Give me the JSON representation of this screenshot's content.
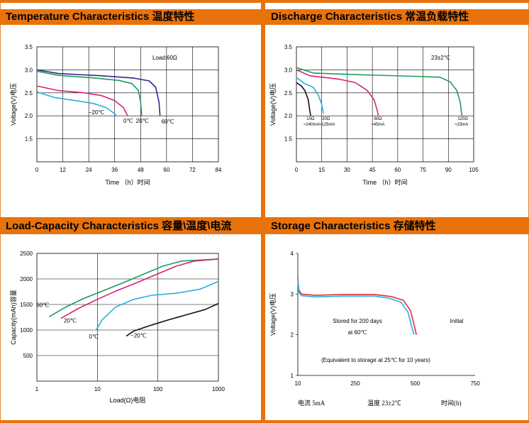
{
  "panels": {
    "temp": {
      "title": "Temperature Characteristics 温度特性"
    },
    "discharge": {
      "title": "Discharge Characteristics 常温负载特性"
    },
    "load": {
      "title": "Load-Capacity Characteristics 容量\\温度\\电流"
    },
    "storage": {
      "title": "Storage Characteristics 存储特性"
    }
  },
  "chart_data": [
    {
      "type": "line",
      "title": "Temperature Characteristics 温度特性",
      "xlabel": "Time （h）时间",
      "ylabel": "Voltage(V)电压",
      "xlim": [
        0,
        84
      ],
      "ylim": [
        1.0,
        3.5
      ],
      "xticks": [
        "0",
        "12",
        "24",
        "36",
        "48",
        "60",
        "72",
        "84"
      ],
      "yticks": [
        "1.5",
        "2.0",
        "2.5",
        "3.0",
        "3.5"
      ],
      "annotation": "Load:60Ω",
      "grid": true,
      "series": [
        {
          "name": "60℃",
          "color": "#2b2b8f",
          "points": [
            [
              0,
              3.0
            ],
            [
              10,
              2.92
            ],
            [
              30,
              2.87
            ],
            [
              45,
              2.82
            ],
            [
              52,
              2.76
            ],
            [
              55,
              2.62
            ],
            [
              56.5,
              2.3
            ],
            [
              57,
              2.0
            ]
          ]
        },
        {
          "name": "20℃",
          "color": "#1a9e5a",
          "points": [
            [
              0,
              2.97
            ],
            [
              10,
              2.88
            ],
            [
              25,
              2.83
            ],
            [
              38,
              2.77
            ],
            [
              44,
              2.7
            ],
            [
              47,
              2.55
            ],
            [
              48,
              2.3
            ],
            [
              48.5,
              2.0
            ]
          ]
        },
        {
          "name": "0℃",
          "color": "#d4237a",
          "points": [
            [
              0,
              2.65
            ],
            [
              10,
              2.55
            ],
            [
              22,
              2.5
            ],
            [
              30,
              2.44
            ],
            [
              36,
              2.33
            ],
            [
              40,
              2.18
            ],
            [
              42,
              2.0
            ]
          ]
        },
        {
          "name": "-20℃",
          "color": "#2aaee0",
          "points": [
            [
              0,
              2.52
            ],
            [
              8,
              2.4
            ],
            [
              18,
              2.33
            ],
            [
              26,
              2.27
            ],
            [
              32,
              2.18
            ],
            [
              35,
              2.08
            ],
            [
              37,
              2.0
            ]
          ]
        }
      ]
    },
    {
      "type": "line",
      "title": "Discharge Characteristics 常温负载特性",
      "xlabel": "Time （h）时间",
      "ylabel": "Voltage(V)电压",
      "xlim": [
        0,
        105
      ],
      "ylim": [
        1.0,
        3.5
      ],
      "xticks": [
        "0",
        "15",
        "30",
        "45",
        "60",
        "75",
        "90",
        "105"
      ],
      "yticks": [
        "1.5",
        "2.0",
        "2.5",
        "3.0",
        "3.5"
      ],
      "annotation": "23±2℃",
      "grid": true,
      "series": [
        {
          "name": "120Ω",
          "label2": "≈23mA",
          "color": "#1a9e5a",
          "points": [
            [
              0,
              3.05
            ],
            [
              10,
              2.93
            ],
            [
              40,
              2.89
            ],
            [
              70,
              2.86
            ],
            [
              85,
              2.84
            ],
            [
              91,
              2.74
            ],
            [
              95,
              2.55
            ],
            [
              97,
              2.3
            ],
            [
              98,
              2.0
            ]
          ]
        },
        {
          "name": "60Ω",
          "label2": "≈45mA",
          "color": "#d4237a",
          "points": [
            [
              0,
              3.0
            ],
            [
              8,
              2.87
            ],
            [
              25,
              2.8
            ],
            [
              35,
              2.72
            ],
            [
              42,
              2.55
            ],
            [
              46,
              2.35
            ],
            [
              48,
              2.1
            ],
            [
              48.5,
              2.0
            ]
          ]
        },
        {
          "name": "20Ω",
          "label2": "≈125mA",
          "color": "#2aaee0",
          "points": [
            [
              0,
              2.83
            ],
            [
              5,
              2.7
            ],
            [
              10,
              2.62
            ],
            [
              13,
              2.45
            ],
            [
              15,
              2.25
            ],
            [
              16,
              2.05
            ]
          ]
        },
        {
          "name": "10Ω",
          "label2": "≈240mA",
          "color": "#111111",
          "points": [
            [
              0,
              2.72
            ],
            [
              3,
              2.65
            ],
            [
              5,
              2.55
            ],
            [
              7,
              2.35
            ],
            [
              8,
              2.1
            ],
            [
              8.5,
              2.0
            ]
          ]
        }
      ]
    },
    {
      "type": "line",
      "title": "Load-Capacity Characteristics 容量\\温度\\电流",
      "xlabel": "Load(Ω)电阻",
      "ylabel": "Capacity(mAh)容量",
      "xscale": "log",
      "xlim": [
        1,
        1000
      ],
      "ylim": [
        0,
        2500
      ],
      "xticks": [
        "1",
        "10",
        "100",
        "1000"
      ],
      "yticks": [
        "500",
        "1000",
        "1500",
        "2000",
        "2500"
      ],
      "grid": true,
      "series": [
        {
          "name": "60℃",
          "color": "#1a9e5a",
          "points": [
            [
              1.6,
              1260
            ],
            [
              3,
              1450
            ],
            [
              6,
              1620
            ],
            [
              12,
              1760
            ],
            [
              30,
              1950
            ],
            [
              60,
              2100
            ],
            [
              120,
              2250
            ],
            [
              250,
              2350
            ],
            [
              1000,
              2390
            ]
          ]
        },
        {
          "name": "20℃",
          "color": "#d4237a",
          "points": [
            [
              2.5,
              1230
            ],
            [
              5,
              1430
            ],
            [
              10,
              1600
            ],
            [
              20,
              1760
            ],
            [
              50,
              1950
            ],
            [
              100,
              2100
            ],
            [
              200,
              2250
            ],
            [
              400,
              2350
            ],
            [
              1000,
              2390
            ]
          ]
        },
        {
          "name": "0℃",
          "color": "#2aaee0",
          "points": [
            [
              9.5,
              1000
            ],
            [
              12,
              1200
            ],
            [
              20,
              1450
            ],
            [
              40,
              1600
            ],
            [
              80,
              1680
            ],
            [
              200,
              1720
            ],
            [
              500,
              1800
            ],
            [
              1000,
              1950
            ]
          ]
        },
        {
          "name": "-20℃",
          "color": "#111111",
          "points": [
            [
              30,
              880
            ],
            [
              40,
              980
            ],
            [
              80,
              1100
            ],
            [
              150,
              1200
            ],
            [
              300,
              1300
            ],
            [
              600,
              1400
            ],
            [
              1000,
              1520
            ]
          ]
        }
      ]
    },
    {
      "type": "line",
      "title": "Storage Characteristics 存储特性",
      "xlabel": "",
      "ylabel": "Voltage(V)电压",
      "xlim": [
        10,
        750
      ],
      "ylim": [
        1,
        4
      ],
      "xticks": [
        "10",
        "250",
        "500",
        "750"
      ],
      "yticks": [
        "1",
        "2",
        "3",
        "4"
      ],
      "grid": false,
      "annotations": [
        "Stored for 200 days",
        "at 60℃",
        "Initial",
        "(Equivalent to storage at 25℃ for 10 years)"
      ],
      "footer": [
        "电流  5mA",
        "温度  23±2℃",
        "时间(h)"
      ],
      "series": [
        {
          "name": "Initial",
          "color": "#e0303a",
          "points": [
            [
              10,
              3.4
            ],
            [
              14,
              3.1
            ],
            [
              25,
              3.0
            ],
            [
              80,
              2.97
            ],
            [
              200,
              2.99
            ],
            [
              330,
              2.99
            ],
            [
              400,
              2.94
            ],
            [
              450,
              2.85
            ],
            [
              480,
              2.6
            ],
            [
              495,
              2.25
            ],
            [
              505,
              2.0
            ]
          ]
        },
        {
          "name": "Stored for 200 days at 60℃",
          "color": "#2aaee0",
          "points": [
            [
              10,
              3.35
            ],
            [
              14,
              3.05
            ],
            [
              25,
              2.96
            ],
            [
              80,
              2.93
            ],
            [
              200,
              2.95
            ],
            [
              330,
              2.95
            ],
            [
              390,
              2.9
            ],
            [
              440,
              2.8
            ],
            [
              470,
              2.55
            ],
            [
              485,
              2.2
            ],
            [
              495,
              2.0
            ]
          ]
        }
      ]
    }
  ]
}
